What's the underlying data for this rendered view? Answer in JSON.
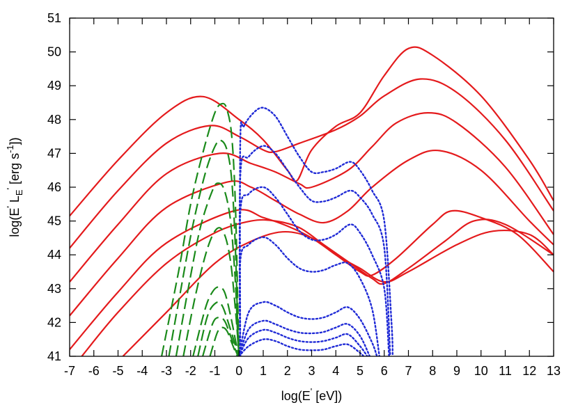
{
  "chart_data": {
    "type": "line",
    "title": "",
    "xlabel": "log(E' [eV])",
    "ylabel": "log(E' L_E' [erg s^-1])",
    "xlim": [
      -7,
      13
    ],
    "ylim": [
      41,
      51
    ],
    "x_ticks": [
      -7,
      -6,
      -5,
      -4,
      -3,
      -2,
      -1,
      0,
      1,
      2,
      3,
      4,
      5,
      6,
      7,
      8,
      9,
      10,
      11,
      12,
      13
    ],
    "y_ticks": [
      41,
      42,
      43,
      44,
      45,
      46,
      47,
      48,
      49,
      50,
      51
    ],
    "grid": false,
    "legend": "none",
    "colors": {
      "red": "#e41a1c",
      "green": "#1a8a1a",
      "blue": "#1f2ad6"
    },
    "series": [
      {
        "color": "red",
        "style": "solid",
        "points": [
          [
            -7,
            45.15
          ],
          [
            -5,
            46.8
          ],
          [
            -3,
            48.2
          ],
          [
            -1.5,
            48.68
          ],
          [
            0,
            48.0
          ],
          [
            1,
            47.4
          ],
          [
            2,
            46.5
          ],
          [
            2.4,
            46.2
          ],
          [
            3,
            47.1
          ],
          [
            4,
            47.8
          ],
          [
            5,
            48.2
          ],
          [
            6,
            49.3
          ],
          [
            7,
            50.1
          ],
          [
            8,
            49.9
          ],
          [
            10,
            48.7
          ],
          [
            12,
            46.8
          ],
          [
            13,
            45.6
          ]
        ]
      },
      {
        "color": "red",
        "style": "solid",
        "points": [
          [
            -7,
            44.2
          ],
          [
            -5,
            45.9
          ],
          [
            -3,
            47.3
          ],
          [
            -1.2,
            47.82
          ],
          [
            0,
            47.5
          ],
          [
            1,
            47.1
          ],
          [
            1.5,
            47.05
          ],
          [
            2.5,
            47.3
          ],
          [
            4,
            47.7
          ],
          [
            5,
            48.1
          ],
          [
            6,
            48.7
          ],
          [
            7.5,
            49.2
          ],
          [
            9,
            48.8
          ],
          [
            11,
            47.4
          ],
          [
            13,
            45.3
          ]
        ]
      },
      {
        "color": "red",
        "style": "solid",
        "points": [
          [
            -7,
            43.2
          ],
          [
            -5,
            44.9
          ],
          [
            -3,
            46.4
          ],
          [
            -0.8,
            47.0
          ],
          [
            0.5,
            46.7
          ],
          [
            1.5,
            46.45
          ],
          [
            2.5,
            46.1
          ],
          [
            3,
            46.0
          ],
          [
            4.5,
            46.5
          ],
          [
            5.5,
            47.2
          ],
          [
            6.5,
            47.9
          ],
          [
            7.8,
            48.2
          ],
          [
            9,
            47.9
          ],
          [
            11,
            46.6
          ],
          [
            13,
            44.6
          ]
        ]
      },
      {
        "color": "red",
        "style": "solid",
        "points": [
          [
            -7,
            42.2
          ],
          [
            -5,
            43.9
          ],
          [
            -3,
            45.4
          ],
          [
            -0.5,
            46.15
          ],
          [
            0.5,
            46.0
          ],
          [
            1.5,
            45.6
          ],
          [
            2.5,
            45.2
          ],
          [
            3.5,
            44.95
          ],
          [
            4.5,
            45.3
          ],
          [
            5.5,
            46.0
          ],
          [
            7,
            46.8
          ],
          [
            8.3,
            47.08
          ],
          [
            10,
            46.5
          ],
          [
            12,
            45.0
          ],
          [
            13,
            44.3
          ]
        ]
      },
      {
        "color": "red",
        "style": "solid",
        "points": [
          [
            -7,
            41.2
          ],
          [
            -5,
            42.9
          ],
          [
            -3,
            44.35
          ],
          [
            -0.2,
            45.3
          ],
          [
            1,
            45.1
          ],
          [
            2,
            44.85
          ],
          [
            3,
            44.5
          ],
          [
            4,
            44.0
          ],
          [
            5,
            43.5
          ],
          [
            5.5,
            43.4
          ],
          [
            6.5,
            43.9
          ],
          [
            8,
            44.9
          ],
          [
            8.8,
            45.3
          ],
          [
            10,
            45.1
          ],
          [
            11.5,
            44.6
          ],
          [
            13,
            43.5
          ]
        ]
      },
      {
        "color": "red",
        "style": "solid",
        "points": [
          [
            -6.5,
            41.0
          ],
          [
            -5,
            42.3
          ],
          [
            -3,
            43.75
          ],
          [
            -1,
            44.65
          ],
          [
            0.5,
            45.0
          ],
          [
            1.5,
            45.0
          ],
          [
            2.5,
            44.8
          ],
          [
            3.5,
            44.3
          ],
          [
            4.5,
            43.8
          ],
          [
            5.5,
            43.3
          ],
          [
            6,
            43.15
          ],
          [
            7,
            43.6
          ],
          [
            8.5,
            44.4
          ],
          [
            9.7,
            45.0
          ],
          [
            11,
            44.9
          ],
          [
            13,
            44.0
          ]
        ]
      },
      {
        "color": "red",
        "style": "solid",
        "points": [
          [
            -4.8,
            41.0
          ],
          [
            -3,
            42.3
          ],
          [
            -1,
            43.75
          ],
          [
            0.5,
            44.4
          ],
          [
            1.8,
            44.68
          ],
          [
            3,
            44.5
          ],
          [
            4,
            44.0
          ],
          [
            5,
            43.6
          ],
          [
            6,
            43.2
          ],
          [
            7,
            43.5
          ],
          [
            9,
            44.3
          ],
          [
            10.5,
            44.7
          ],
          [
            12,
            44.6
          ],
          [
            13,
            44.0
          ]
        ]
      },
      {
        "color": "green",
        "style": "dashed",
        "points": [
          [
            -3.2,
            41.0
          ],
          [
            -2.5,
            43.5
          ],
          [
            -2,
            45.5
          ],
          [
            -1.5,
            47.0
          ],
          [
            -1,
            48.2
          ],
          [
            -0.7,
            48.47
          ],
          [
            -0.5,
            48.3
          ],
          [
            -0.3,
            47.5
          ],
          [
            -0.15,
            45.5
          ],
          [
            -0.05,
            42.5
          ],
          [
            0,
            41.0
          ]
        ]
      },
      {
        "color": "green",
        "style": "dashed",
        "points": [
          [
            -2.9,
            41.0
          ],
          [
            -2.4,
            43.0
          ],
          [
            -1.9,
            44.9
          ],
          [
            -1.4,
            46.4
          ],
          [
            -1,
            47.2
          ],
          [
            -0.75,
            47.38
          ],
          [
            -0.5,
            47.1
          ],
          [
            -0.3,
            46.2
          ],
          [
            -0.15,
            44.2
          ],
          [
            -0.05,
            41.8
          ],
          [
            0,
            41.0
          ]
        ]
      },
      {
        "color": "green",
        "style": "dashed",
        "points": [
          [
            -2.6,
            41.0
          ],
          [
            -2.1,
            43.0
          ],
          [
            -1.6,
            44.8
          ],
          [
            -1.1,
            45.9
          ],
          [
            -0.85,
            46.12
          ],
          [
            -0.6,
            45.9
          ],
          [
            -0.35,
            45.0
          ],
          [
            -0.15,
            43.2
          ],
          [
            -0.05,
            41.5
          ],
          [
            0,
            41.0
          ]
        ]
      },
      {
        "color": "green",
        "style": "dashed",
        "points": [
          [
            -2.3,
            41.0
          ],
          [
            -1.8,
            42.8
          ],
          [
            -1.3,
            44.2
          ],
          [
            -0.9,
            44.78
          ],
          [
            -0.6,
            44.6
          ],
          [
            -0.35,
            43.8
          ],
          [
            -0.15,
            42.4
          ],
          [
            0,
            41.0
          ]
        ]
      },
      {
        "color": "green",
        "style": "dashed",
        "points": [
          [
            -1.9,
            41.0
          ],
          [
            -1.4,
            42.4
          ],
          [
            -1.1,
            42.9
          ],
          [
            -0.85,
            43.05
          ],
          [
            -0.6,
            42.9
          ],
          [
            -0.35,
            42.2
          ],
          [
            -0.1,
            41.3
          ],
          [
            0,
            41.0
          ]
        ]
      },
      {
        "color": "green",
        "style": "dashed",
        "points": [
          [
            -1.7,
            41.0
          ],
          [
            -1.3,
            42.2
          ],
          [
            -0.95,
            42.58
          ],
          [
            -0.7,
            42.5
          ],
          [
            -0.4,
            41.9
          ],
          [
            -0.1,
            41.2
          ],
          [
            0,
            41.0
          ]
        ]
      },
      {
        "color": "green",
        "style": "dashed",
        "points": [
          [
            -1.5,
            41.0
          ],
          [
            -1.1,
            41.95
          ],
          [
            -0.85,
            42.15
          ],
          [
            -0.6,
            42.05
          ],
          [
            -0.35,
            41.6
          ],
          [
            -0.1,
            41.1
          ],
          [
            0,
            41.0
          ]
        ]
      },
      {
        "color": "green",
        "style": "dashed",
        "points": [
          [
            -1.2,
            41.0
          ],
          [
            -0.9,
            41.7
          ],
          [
            -0.7,
            41.85
          ],
          [
            -0.5,
            41.75
          ],
          [
            -0.3,
            41.4
          ],
          [
            -0.1,
            41.05
          ],
          [
            0,
            41.0
          ]
        ]
      },
      {
        "color": "blue",
        "style": "dotted",
        "points": [
          [
            0.05,
            41.0
          ],
          [
            0.05,
            47.3
          ],
          [
            0.2,
            47.8
          ],
          [
            0.6,
            48.2
          ],
          [
            1,
            48.35
          ],
          [
            1.5,
            48.1
          ],
          [
            2,
            47.5
          ],
          [
            2.5,
            46.9
          ],
          [
            3,
            46.45
          ],
          [
            3.5,
            46.45
          ],
          [
            4,
            46.55
          ],
          [
            4.6,
            46.75
          ],
          [
            5,
            46.5
          ],
          [
            5.5,
            45.9
          ],
          [
            6,
            45.0
          ],
          [
            6.3,
            42.0
          ],
          [
            6.35,
            41.0
          ]
        ]
      },
      {
        "color": "blue",
        "style": "dotted",
        "points": [
          [
            0.05,
            41.0
          ],
          [
            0.05,
            46.3
          ],
          [
            0.4,
            46.9
          ],
          [
            1,
            47.22
          ],
          [
            1.5,
            47.0
          ],
          [
            2,
            46.5
          ],
          [
            2.5,
            46.0
          ],
          [
            3,
            45.6
          ],
          [
            3.5,
            45.58
          ],
          [
            4,
            45.7
          ],
          [
            4.6,
            45.9
          ],
          [
            5,
            45.7
          ],
          [
            5.5,
            45.2
          ],
          [
            6,
            44.2
          ],
          [
            6.25,
            41.0
          ]
        ]
      },
      {
        "color": "blue",
        "style": "dotted",
        "points": [
          [
            0.05,
            41.0
          ],
          [
            0.05,
            45.2
          ],
          [
            0.4,
            45.8
          ],
          [
            1,
            46.0
          ],
          [
            1.5,
            45.7
          ],
          [
            2,
            45.2
          ],
          [
            2.5,
            44.7
          ],
          [
            3,
            44.45
          ],
          [
            3.5,
            44.45
          ],
          [
            4,
            44.6
          ],
          [
            4.6,
            44.9
          ],
          [
            5,
            44.65
          ],
          [
            5.5,
            44.0
          ],
          [
            6,
            43.0
          ],
          [
            6.2,
            41.0
          ]
        ]
      },
      {
        "color": "blue",
        "style": "dotted",
        "points": [
          [
            0.05,
            41.0
          ],
          [
            0.05,
            43.8
          ],
          [
            0.4,
            44.3
          ],
          [
            1,
            44.52
          ],
          [
            1.5,
            44.3
          ],
          [
            2,
            43.9
          ],
          [
            2.5,
            43.6
          ],
          [
            3,
            43.5
          ],
          [
            3.5,
            43.55
          ],
          [
            4,
            43.7
          ],
          [
            4.5,
            43.75
          ],
          [
            5,
            43.3
          ],
          [
            5.5,
            42.4
          ],
          [
            5.8,
            41.0
          ]
        ]
      },
      {
        "color": "blue",
        "style": "dotted",
        "points": [
          [
            0,
            41.0
          ],
          [
            0.4,
            42.3
          ],
          [
            1,
            42.6
          ],
          [
            1.5,
            42.5
          ],
          [
            2,
            42.3
          ],
          [
            2.5,
            42.15
          ],
          [
            3,
            42.1
          ],
          [
            3.5,
            42.15
          ],
          [
            4,
            42.3
          ],
          [
            4.5,
            42.45
          ],
          [
            5,
            42.1
          ],
          [
            5.5,
            41.4
          ],
          [
            5.7,
            41.0
          ]
        ]
      },
      {
        "color": "blue",
        "style": "dotted",
        "points": [
          [
            0,
            41.0
          ],
          [
            0.4,
            41.8
          ],
          [
            1,
            42.05
          ],
          [
            1.5,
            41.95
          ],
          [
            2,
            41.8
          ],
          [
            2.5,
            41.7
          ],
          [
            3,
            41.68
          ],
          [
            3.5,
            41.72
          ],
          [
            4,
            41.85
          ],
          [
            4.5,
            41.95
          ],
          [
            5,
            41.6
          ],
          [
            5.4,
            41.0
          ]
        ]
      },
      {
        "color": "blue",
        "style": "dotted",
        "points": [
          [
            0,
            41.0
          ],
          [
            0.4,
            41.55
          ],
          [
            1,
            41.78
          ],
          [
            1.5,
            41.7
          ],
          [
            2,
            41.55
          ],
          [
            2.5,
            41.45
          ],
          [
            3,
            41.42
          ],
          [
            3.5,
            41.45
          ],
          [
            4,
            41.55
          ],
          [
            4.5,
            41.65
          ],
          [
            5,
            41.3
          ],
          [
            5.3,
            41.0
          ]
        ]
      },
      {
        "color": "blue",
        "style": "dotted",
        "points": [
          [
            0,
            41.0
          ],
          [
            0.4,
            41.3
          ],
          [
            1,
            41.5
          ],
          [
            1.5,
            41.45
          ],
          [
            2,
            41.3
          ],
          [
            2.5,
            41.2
          ],
          [
            3,
            41.18
          ],
          [
            3.5,
            41.2
          ],
          [
            4,
            41.3
          ],
          [
            4.5,
            41.35
          ],
          [
            5,
            41.1
          ],
          [
            5.15,
            41.0
          ]
        ]
      }
    ]
  }
}
